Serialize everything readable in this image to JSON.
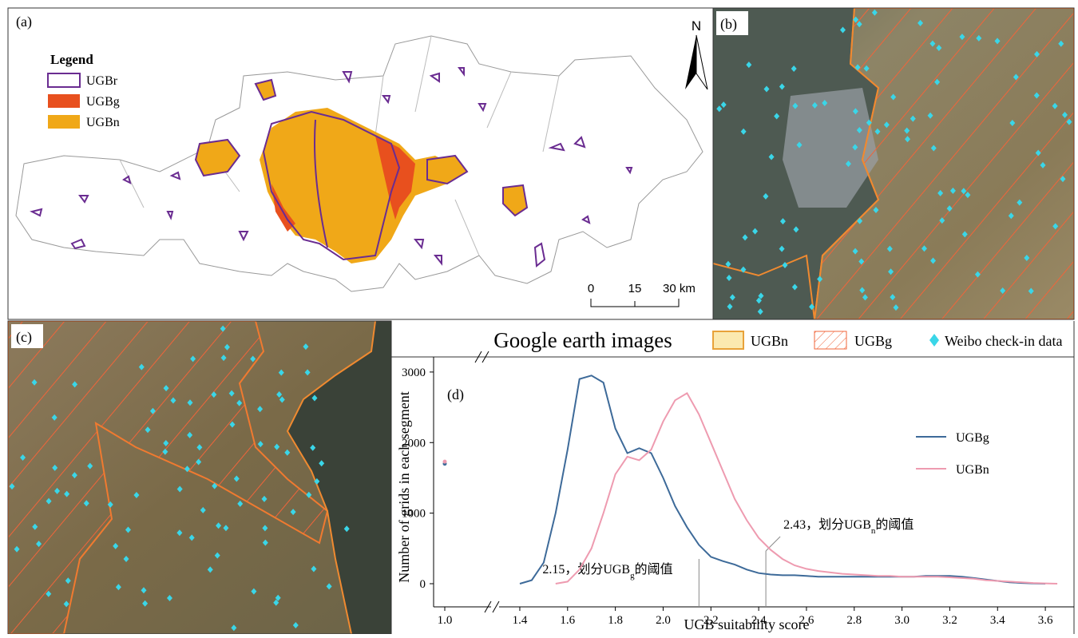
{
  "panels": {
    "a": {
      "label": "(a)",
      "legend_title": "Legend",
      "legend": [
        "UGBr",
        "UGBg",
        "UGBn"
      ],
      "north": "N",
      "scale": [
        "0",
        "15",
        "30 km"
      ]
    },
    "b": {
      "label": "(b)"
    },
    "c": {
      "label": "(c)"
    },
    "image_legend": {
      "title": "Google earth images",
      "items": [
        "UGBn",
        "UGBg",
        "Weibo check-in data"
      ]
    }
  },
  "chart_data": {
    "type": "line",
    "label": "(d)",
    "x_label": "UGB suitability score",
    "y_label": "Number of grids in each segment",
    "x": [
      1.0,
      1.35,
      1.4,
      1.45,
      1.5,
      1.55,
      1.6,
      1.65,
      1.7,
      1.75,
      1.8,
      1.85,
      1.9,
      1.95,
      2.0,
      2.05,
      2.1,
      2.15,
      2.2,
      2.25,
      2.3,
      2.35,
      2.4,
      2.45,
      2.5,
      2.55,
      2.6,
      2.65,
      2.7,
      2.75,
      2.8,
      2.85,
      2.9,
      2.95,
      3.0,
      3.05,
      3.1,
      3.15,
      3.2,
      3.25,
      3.3,
      3.35,
      3.4,
      3.45,
      3.5,
      3.55,
      3.6,
      3.65
    ],
    "series": [
      {
        "name": "UGBg",
        "color": "#3d6a99",
        "values": [
          1700,
          null,
          0,
          50,
          300,
          1000,
          1900,
          2900,
          2950,
          2850,
          2200,
          1850,
          1920,
          1850,
          1500,
          1100,
          800,
          550,
          380,
          320,
          270,
          200,
          150,
          130,
          120,
          120,
          110,
          100,
          100,
          100,
          100,
          100,
          100,
          100,
          100,
          100,
          110,
          110,
          110,
          100,
          80,
          60,
          40,
          20,
          10,
          5,
          0,
          null
        ]
      },
      {
        "name": "UGBn",
        "color": "#ee9bb0",
        "values": [
          1730,
          null,
          null,
          null,
          null,
          0,
          30,
          200,
          500,
          1000,
          1550,
          1800,
          1750,
          1900,
          2300,
          2600,
          2700,
          2400,
          2000,
          1600,
          1200,
          900,
          650,
          480,
          350,
          260,
          210,
          180,
          160,
          140,
          130,
          120,
          110,
          110,
          100,
          100,
          100,
          100,
          90,
          80,
          70,
          50,
          40,
          30,
          20,
          10,
          5,
          0
        ]
      }
    ],
    "xlim": [
      1.35,
      3.72
    ],
    "ylim": [
      -215,
      3180
    ],
    "xticks": [
      {
        "value": 1,
        "label": "1.0"
      },
      1.4,
      1.6,
      1.8,
      {
        "value": 2,
        "label": "2.0"
      },
      2.2,
      2.4,
      2.6,
      2.8,
      {
        "value": 3,
        "label": "3.0"
      },
      3.2,
      3.4,
      3.6
    ],
    "yticks": [
      0,
      1000,
      2000,
      3000
    ],
    "annotations": [
      {
        "x": 2.15,
        "text": "2.15，划分UGB",
        "sub": "g",
        "rest": "的阈值"
      },
      {
        "x": 2.43,
        "text": "2.43，划分UGB",
        "sub": "n",
        "rest": "的阈值"
      }
    ]
  }
}
